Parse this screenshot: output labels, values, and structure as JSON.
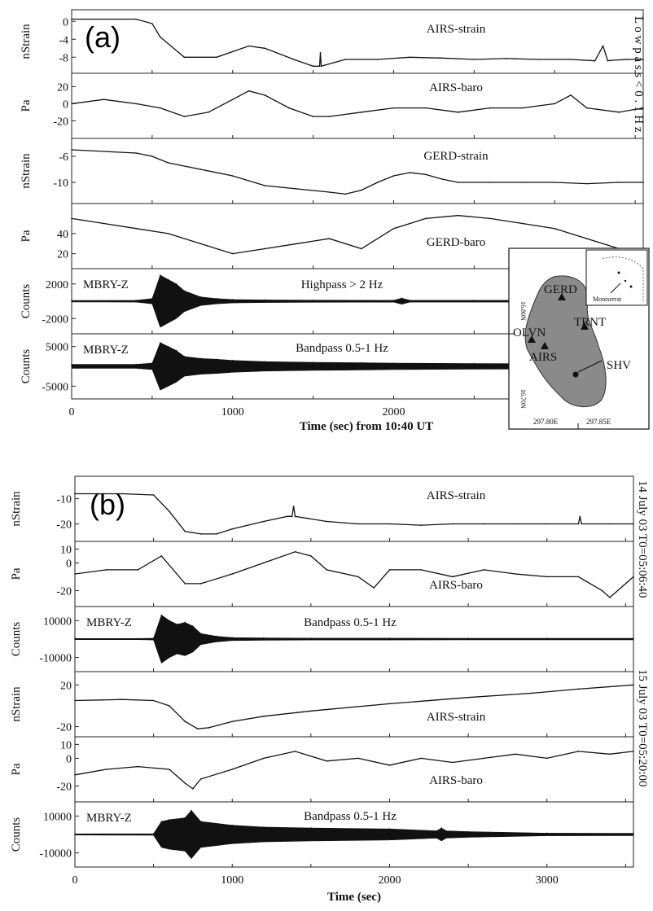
{
  "figure": {
    "panel_a": {
      "letter": "(a)",
      "side_label": "L o w p a s s < 0 . 1 H z",
      "xlabel": "Time (sec) from 10:40 UT",
      "x_ticks": [
        "0",
        "1000",
        "2000"
      ],
      "xlim": [
        0,
        3550
      ],
      "map": {
        "stations": [
          {
            "name": "GERD",
            "marker": "triangle"
          },
          {
            "name": "TRNT",
            "marker": "triangle"
          },
          {
            "name": "OLVN",
            "marker": "triangle"
          },
          {
            "name": "AIRS",
            "marker": "triangle"
          },
          {
            "name": "SHV",
            "marker": "dot"
          }
        ],
        "inset_label": "Montserrat",
        "lat_labels": [
          "16.80N",
          "16.70N"
        ],
        "lon_labels": [
          "297.80E",
          "297.85E"
        ]
      }
    },
    "panel_b": {
      "letter": "(b)",
      "side_labels": [
        "14 July 03 T0=05:06:40",
        "15 July 03 T0=05:20:00"
      ],
      "xlabel": "Time (sec)",
      "x_ticks": [
        "0",
        "1000",
        "2000",
        "3000"
      ],
      "xlim": [
        0,
        3550
      ]
    }
  },
  "chart_data": [
    {
      "type": "line",
      "panel": "a",
      "title": "AIRS-strain",
      "station": "",
      "ylabel": "nStrain",
      "y_ticks": [
        "0",
        "-4",
        "-8"
      ],
      "ylim": [
        -10.5,
        1.5
      ],
      "x": [
        0,
        400,
        500,
        550,
        700,
        900,
        1100,
        1200,
        1380,
        1500,
        1540,
        1545,
        1550,
        1700,
        1900,
        2100,
        2300,
        2500,
        2700,
        2900,
        3100,
        3250,
        3300,
        3330,
        3350,
        3450,
        3550
      ],
      "values": [
        0.5,
        0.5,
        -0.5,
        -3.5,
        -8,
        -8,
        -5.5,
        -6,
        -8.5,
        -10,
        -10,
        -7,
        -10,
        -8.5,
        -8.5,
        -8,
        -8.2,
        -8.5,
        -8.3,
        -8.5,
        -8.5,
        -8.8,
        -5.5,
        -8.8,
        -8.7,
        -8.5,
        -8.5
      ]
    },
    {
      "type": "line",
      "panel": "a",
      "title": "AIRS-baro",
      "station": "",
      "ylabel": "Pa",
      "y_ticks": [
        "20",
        "0",
        "-20"
      ],
      "ylim": [
        -35,
        30
      ],
      "x": [
        0,
        200,
        400,
        550,
        700,
        850,
        1000,
        1100,
        1200,
        1350,
        1500,
        1600,
        1800,
        2000,
        2200,
        2400,
        2600,
        2800,
        3000,
        3100,
        3200,
        3400,
        3550
      ],
      "values": [
        0,
        5,
        0,
        -5,
        -15,
        -10,
        5,
        15,
        10,
        -5,
        -15,
        -15,
        -10,
        -5,
        -5,
        -10,
        -5,
        -5,
        0,
        10,
        -5,
        -10,
        -5
      ]
    },
    {
      "type": "line",
      "panel": "a",
      "title": "GERD-strain",
      "station": "",
      "ylabel": "nStrain",
      "y_ticks": [
        "-6",
        "-10"
      ],
      "ylim": [
        -12.5,
        -4
      ],
      "x": [
        0,
        400,
        500,
        600,
        800,
        1000,
        1200,
        1400,
        1600,
        1700,
        1800,
        1900,
        2000,
        2100,
        2200,
        2300,
        2400,
        2600,
        2800,
        3000,
        3200,
        3400,
        3550
      ],
      "values": [
        -5,
        -5.5,
        -6,
        -7,
        -8,
        -9,
        -10.5,
        -11,
        -11.5,
        -11.8,
        -11.2,
        -10,
        -9,
        -8.5,
        -8.8,
        -9.5,
        -10,
        -10,
        -10,
        -10,
        -10.2,
        -10,
        -10
      ]
    },
    {
      "type": "line",
      "panel": "a",
      "title": "GERD-baro",
      "station": "",
      "ylabel": "Pa",
      "y_ticks": [
        "40",
        "20"
      ],
      "ylim": [
        10,
        65
      ],
      "x": [
        0,
        200,
        400,
        600,
        800,
        1000,
        1200,
        1400,
        1600,
        1800,
        2000,
        2200,
        2400,
        2600,
        2800,
        3000,
        3200,
        3400,
        3550
      ],
      "values": [
        55,
        50,
        45,
        40,
        30,
        20,
        25,
        30,
        35,
        25,
        45,
        55,
        58,
        55,
        50,
        45,
        35,
        25,
        20
      ]
    },
    {
      "type": "line",
      "panel": "a",
      "title": "Highpass > 2 Hz",
      "station": "MBRY-Z",
      "ylabel": "Counts",
      "y_ticks": [
        "2000",
        "-2000"
      ],
      "ylim": [
        -3200,
        3200
      ],
      "x": [
        0,
        400,
        500,
        550,
        600,
        650,
        700,
        800,
        900,
        1000,
        1200,
        1500,
        2000,
        2050,
        2100,
        2500,
        3000,
        3550
      ],
      "values": [
        80,
        100,
        300,
        3000,
        2500,
        2000,
        1200,
        500,
        300,
        200,
        150,
        120,
        100,
        350,
        100,
        100,
        100,
        100
      ]
    },
    {
      "type": "line",
      "panel": "a",
      "title": "Bandpass 0.5-1 Hz",
      "station": "MBRY-Z",
      "ylabel": "Counts",
      "y_ticks": [
        "5000",
        "-5000"
      ],
      "ylim": [
        -7000,
        7000
      ],
      "x": [
        0,
        400,
        500,
        550,
        600,
        650,
        700,
        800,
        900,
        1000,
        1200,
        1500,
        1800,
        2000,
        2500,
        3000,
        3550
      ],
      "values": [
        500,
        500,
        800,
        6000,
        5000,
        4000,
        2500,
        2000,
        1800,
        1500,
        1200,
        1000,
        900,
        800,
        700,
        650,
        600
      ]
    },
    {
      "type": "line",
      "panel": "b",
      "title": "AIRS-strain",
      "station": "",
      "ylabel": "nStrain",
      "y_ticks": [
        "-10",
        "-20"
      ],
      "ylim": [
        -25,
        -3
      ],
      "x": [
        0,
        300,
        500,
        600,
        700,
        800,
        900,
        1000,
        1200,
        1350,
        1380,
        1390,
        1400,
        1600,
        1800,
        2000,
        2200,
        2400,
        2600,
        2800,
        3000,
        3200,
        3210,
        3220,
        3400,
        3550
      ],
      "values": [
        -8,
        -8,
        -8.5,
        -15,
        -23,
        -24,
        -24,
        -22,
        -19,
        -17,
        -17,
        -13,
        -17,
        -19,
        -20,
        -20,
        -20.5,
        -20,
        -20,
        -20,
        -20,
        -20,
        -17,
        -20,
        -20,
        -20
      ]
    },
    {
      "type": "line",
      "panel": "b",
      "title": "AIRS-baro",
      "station": "",
      "ylabel": "Pa",
      "y_ticks": [
        "10",
        "0",
        "-20"
      ],
      "ylim": [
        -28,
        12
      ],
      "x": [
        0,
        200,
        400,
        550,
        700,
        800,
        1000,
        1200,
        1400,
        1500,
        1600,
        1800,
        1900,
        2000,
        2200,
        2400,
        2600,
        2800,
        3000,
        3200,
        3350,
        3400,
        3550
      ],
      "values": [
        -8,
        -5,
        -5,
        5,
        -15,
        -15,
        -8,
        0,
        8,
        5,
        -5,
        -10,
        -18,
        -5,
        -5,
        -10,
        -5,
        -8,
        -10,
        -10,
        -20,
        -25,
        -10
      ]
    },
    {
      "type": "line",
      "panel": "b",
      "title": "Bandpass 0.5-1 Hz",
      "station": "MBRY-Z",
      "ylabel": "Counts",
      "y_ticks": [
        "10000",
        "-10000"
      ],
      "ylim": [
        -15000,
        15000
      ],
      "x": [
        0,
        400,
        500,
        550,
        600,
        650,
        700,
        750,
        800,
        900,
        1000,
        1200,
        1500,
        2000,
        2500,
        3000,
        3550
      ],
      "values": [
        300,
        300,
        500,
        13000,
        10000,
        8000,
        9000,
        7000,
        3000,
        1500,
        800,
        600,
        500,
        500,
        400,
        400,
        400
      ]
    },
    {
      "type": "line",
      "panel": "b",
      "title": "AIRS-strain",
      "station": "",
      "ylabel": "nStrain",
      "y_ticks": [
        "20",
        "-20"
      ],
      "ylim": [
        -25,
        28
      ],
      "x": [
        0,
        300,
        500,
        600,
        700,
        780,
        850,
        1000,
        1200,
        1500,
        2000,
        2500,
        2900,
        3200,
        3550
      ],
      "values": [
        5,
        6,
        5,
        0,
        -15,
        -22,
        -21,
        -15,
        -10,
        -5,
        2,
        8,
        12,
        16,
        20
      ]
    },
    {
      "type": "line",
      "panel": "b",
      "title": "AIRS-baro",
      "station": "",
      "ylabel": "Pa",
      "y_ticks": [
        "10",
        "0",
        "-20"
      ],
      "ylim": [
        -28,
        12
      ],
      "x": [
        0,
        200,
        400,
        600,
        700,
        750,
        800,
        1000,
        1200,
        1400,
        1600,
        1800,
        2000,
        2200,
        2400,
        2600,
        2800,
        3000,
        3200,
        3400,
        3550
      ],
      "values": [
        -12,
        -8,
        -6,
        -8,
        -18,
        -22,
        -15,
        -8,
        0,
        5,
        -2,
        0,
        -5,
        0,
        -3,
        0,
        3,
        0,
        5,
        3,
        5
      ]
    },
    {
      "type": "line",
      "panel": "b",
      "title": "Bandpass 0.5-1 Hz",
      "station": "MBRY-Z",
      "ylabel": "Counts",
      "y_ticks": [
        "10000",
        "-10000"
      ],
      "ylim": [
        -15000,
        15000
      ],
      "x": [
        0,
        500,
        550,
        600,
        700,
        740,
        800,
        1000,
        1200,
        1500,
        2000,
        2300,
        2330,
        2360,
        2500,
        3000,
        3550
      ],
      "values": [
        300,
        400,
        7000,
        8000,
        9000,
        13000,
        7000,
        5000,
        4000,
        3500,
        3000,
        2000,
        3500,
        2000,
        1500,
        700,
        600
      ]
    }
  ]
}
